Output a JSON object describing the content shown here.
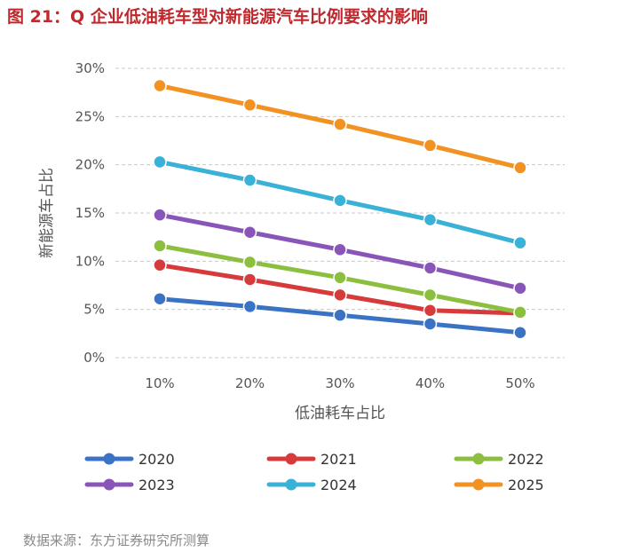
{
  "title": "图 21：Q 企业低油耗车型对新能源汽车比例要求的影响",
  "footer": "数据来源：东方证券研究所测算",
  "chart_data": {
    "type": "line",
    "xlabel": "低油耗车占比",
    "ylabel": "新能源车占比",
    "categories": [
      "10%",
      "20%",
      "30%",
      "40%",
      "50%"
    ],
    "ylim": [
      0,
      30
    ],
    "yticks": [
      0,
      5,
      10,
      15,
      20,
      25,
      30
    ],
    "ytick_labels": [
      "0%",
      "5%",
      "10%",
      "15%",
      "20%",
      "25%",
      "30%"
    ],
    "grid": "horizontal dashed",
    "legend_position": "bottom",
    "series": [
      {
        "name": "2020",
        "color": "#3b73c4",
        "values": [
          6.1,
          5.3,
          4.4,
          3.5,
          2.6
        ]
      },
      {
        "name": "2021",
        "color": "#d63a3a",
        "values": [
          9.6,
          8.1,
          6.5,
          4.9,
          4.6
        ]
      },
      {
        "name": "2022",
        "color": "#8cbf3f",
        "values": [
          11.6,
          9.9,
          8.3,
          6.5,
          4.7
        ]
      },
      {
        "name": "2023",
        "color": "#8a55b8",
        "values": [
          14.8,
          13.0,
          11.2,
          9.3,
          7.2
        ]
      },
      {
        "name": "2024",
        "color": "#3ab1d6",
        "values": [
          20.3,
          18.4,
          16.3,
          14.3,
          11.9
        ]
      },
      {
        "name": "2025",
        "color": "#f29222",
        "values": [
          28.2,
          26.2,
          24.2,
          22.0,
          19.7
        ]
      }
    ]
  }
}
